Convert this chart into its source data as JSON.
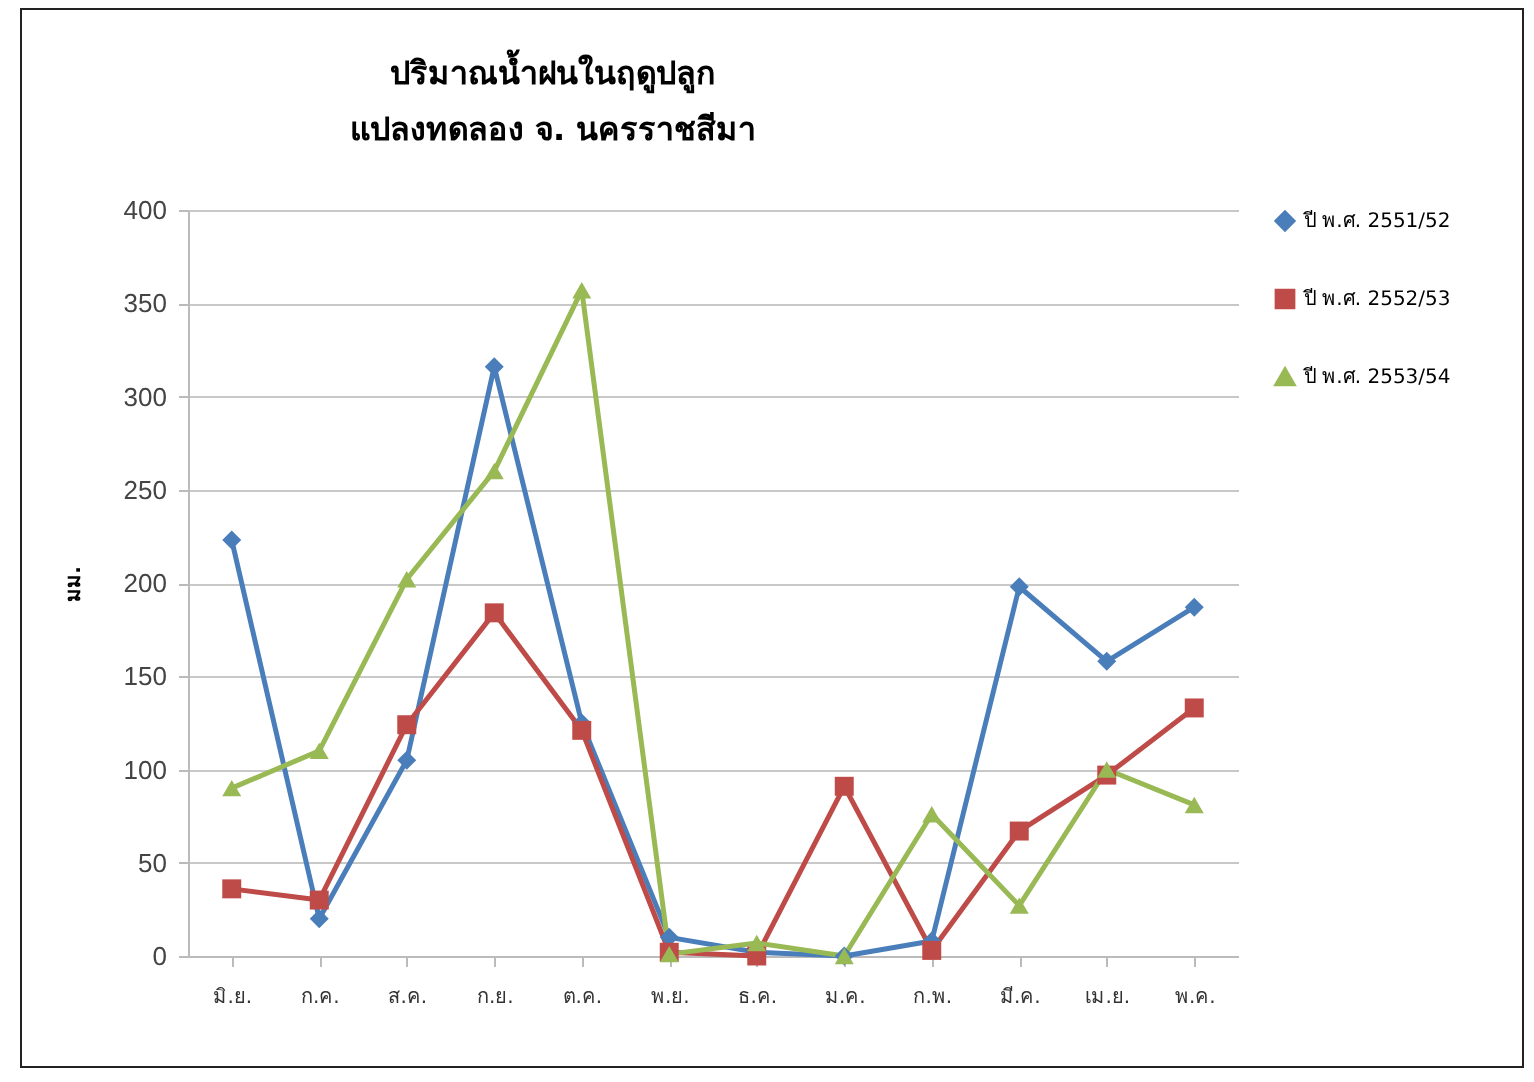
{
  "chart_data": {
    "type": "line",
    "title": "ปริมาณน้ำฝนในฤดูปลูก",
    "subtitle": "แปลงทดลอง จ. นครราชสีมา",
    "ylabel": "มม.",
    "categories": [
      "มิ.ย.",
      "ก.ค.",
      "ส.ค.",
      "ก.ย.",
      "ต.ค.",
      "พ.ย.",
      "ธ.ค.",
      "ม.ค.",
      "ก.พ.",
      "มี.ค.",
      "เม.ย.",
      "พ.ค."
    ],
    "series": [
      {
        "name": "ปี พ.ศ. 2551/52",
        "color": "#4a7ebb",
        "marker": "diamond",
        "values": [
          223,
          20,
          105,
          316,
          125,
          10,
          2,
          0,
          8,
          198,
          158,
          187
        ]
      },
      {
        "name": "ปี พ.ศ. 2552/53",
        "color": "#be4b48",
        "marker": "square",
        "values": [
          36,
          30,
          124,
          184,
          121,
          2,
          0,
          91,
          3,
          67,
          97,
          133
        ]
      },
      {
        "name": "ปี พ.ศ. 2553/54",
        "color": "#98b954",
        "marker": "triangle",
        "values": [
          90,
          110,
          202,
          260,
          357,
          1,
          7,
          0,
          76,
          27,
          100,
          81
        ]
      }
    ],
    "ylim": [
      0,
      400
    ],
    "yticks": [
      0,
      50,
      100,
      150,
      200,
      250,
      300,
      350,
      400
    ],
    "grid": "y",
    "legend": "right",
    "line_style": "solid"
  }
}
